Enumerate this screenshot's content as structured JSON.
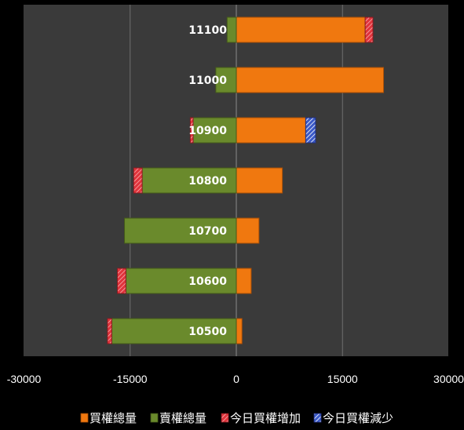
{
  "chart_data": {
    "type": "bar",
    "orientation": "horizontal",
    "stacked": true,
    "categories": [
      "11100",
      "11000",
      "10900",
      "10800",
      "10700",
      "10600",
      "10500"
    ],
    "series": [
      {
        "name": "買權總量",
        "color": "#f0780f",
        "values": [
          18200,
          20800,
          9800,
          6500,
          3200,
          2100,
          800
        ]
      },
      {
        "name": "賣權總量",
        "color": "#6a8a2c",
        "values": [
          -1300,
          -2900,
          -6100,
          -13300,
          -15800,
          -15600,
          -17600
        ]
      },
      {
        "name": "今日買權增加",
        "color": "#e0343c",
        "pattern": "hatch",
        "values": [
          1100,
          0,
          -400,
          -1200,
          0,
          -1200,
          -600
        ]
      },
      {
        "name": "今日買權減少",
        "color": "#3b5ac8",
        "pattern": "hatch",
        "values": [
          0,
          0,
          1400,
          0,
          0,
          0,
          0
        ]
      }
    ],
    "xlim": [
      -30000,
      30000
    ],
    "xticks": [
      -30000,
      -15000,
      0,
      15000,
      30000
    ],
    "xtick_labels": [
      "-30000",
      "-15000",
      "0",
      "15000",
      "30000"
    ],
    "grid": "vertical",
    "legend": "bottom",
    "background": "#3a3a3a"
  }
}
